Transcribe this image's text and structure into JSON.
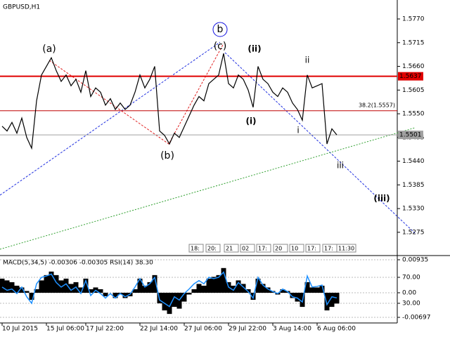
{
  "chart_data": [
    {
      "type": "line",
      "title": "GBPUSD,H1",
      "x": [
        "10 Jul 2015",
        null,
        null,
        null,
        null,
        null,
        null,
        null,
        null,
        "15 Jul 06:00",
        null,
        null,
        null,
        null,
        null,
        null,
        null,
        "17 Jul 22:00",
        null,
        null,
        null,
        null,
        null,
        null,
        null,
        null,
        null,
        null,
        "22 Jul 14:00",
        null,
        null,
        null,
        null,
        null,
        null,
        null,
        null,
        "27 Jul 06:00",
        null,
        null,
        null,
        null,
        null,
        null,
        null,
        null,
        "29 Jul 22:00",
        null,
        null,
        null,
        null,
        null,
        null,
        null,
        null,
        "3 Aug 14:00",
        null,
        null,
        null,
        null,
        null,
        null,
        null,
        null,
        "6 Aug 06:00",
        null,
        null,
        null,
        null
      ],
      "series": [
        {
          "color": "#000000",
          "values": [
            1.5521,
            1.551,
            1.553,
            1.5505,
            1.554,
            1.5495,
            1.547,
            1.558,
            1.564,
            1.566,
            1.568,
            1.565,
            1.5625,
            1.564,
            1.5615,
            1.563,
            1.56,
            1.565,
            1.559,
            1.561,
            1.56,
            1.557,
            1.5585,
            1.556,
            1.5575,
            1.556,
            1.557,
            1.56,
            1.564,
            1.561,
            1.563,
            1.566,
            1.551,
            1.55,
            1.548,
            1.5505,
            1.5495,
            1.552,
            1.5545,
            1.557,
            1.559,
            1.558,
            1.562,
            1.563,
            1.564,
            1.569,
            1.562,
            1.561,
            1.564,
            1.563,
            1.5605,
            1.5565,
            1.566,
            1.563,
            1.562,
            1.56,
            1.559,
            1.561,
            1.56,
            1.5575,
            1.556,
            1.5535,
            1.564,
            1.561,
            1.5615,
            1.562,
            1.548,
            1.5515,
            1.5501
          ]
        }
      ],
      "ylim": [
        1.5221,
        1.5814
      ],
      "yticks": [
        {
          "value": 1.577,
          "label": "1.5770"
        },
        1.5715,
        {
          "value": 1.566,
          "label": "1.5660"
        },
        1.5605,
        {
          "value": 1.555,
          "label": "1.5550"
        },
        1.5495,
        {
          "value": 1.544,
          "label": "1.5440"
        },
        1.5385,
        {
          "value": 1.533,
          "label": "1.5330"
        },
        1.5275
      ],
      "levels": [
        {
          "value": 1.5637,
          "label": "1.5637",
          "color": "#e00000"
        },
        {
          "value": 1.5557,
          "label": "38.2(1.5557)",
          "color": "#c00000"
        },
        {
          "value": 1.5501,
          "label": "1.5501",
          "color": "#a0a0a0"
        }
      ],
      "annotations": [
        {
          "text": "(a)",
          "color": "#e02020"
        },
        {
          "text": "(b)",
          "color": "#e02020"
        },
        {
          "text": "(c)",
          "color": "#e02020"
        },
        {
          "text": "b",
          "color": "#1010e0"
        },
        {
          "text": "(i)",
          "color": "#d00000"
        },
        {
          "text": "(ii)",
          "color": "#d00000"
        },
        {
          "text": "i",
          "color": "#606060"
        },
        {
          "text": "ii",
          "color": "#606060"
        },
        {
          "text": "iii",
          "color": "#606060"
        },
        {
          "text": "(iii)",
          "color": "#d00000"
        }
      ],
      "time_tags": [
        "18:",
        "20:",
        "21",
        "02",
        "17:",
        "20",
        "10",
        "17:",
        "17:",
        "11:30"
      ]
    },
    {
      "type": "bar",
      "title": "MACD(5,34,5) -0.00306 -0.00305 RSI(14) 38.30",
      "series": [
        {
          "color": "#000000",
          "values": [
            0.004,
            0.0035,
            0.003,
            0.002,
            0.0015,
            0.0005,
            -0.002,
            0.001,
            0.0035,
            0.005,
            0.006,
            0.005,
            0.0035,
            0.004,
            0.0025,
            0.003,
            0.0015,
            0.004,
            0.001,
            0.0015,
            0.001,
            -0.001,
            0.0,
            -0.0015,
            -0.0005,
            -0.0015,
            -0.001,
            0.001,
            0.004,
            0.002,
            0.003,
            0.005,
            -0.003,
            -0.005,
            -0.006,
            -0.004,
            -0.0045,
            -0.0025,
            -0.0005,
            0.001,
            0.0025,
            0.002,
            0.004,
            0.0045,
            0.005,
            0.007,
            0.003,
            0.002,
            0.0035,
            0.0025,
            0.001,
            -0.002,
            0.004,
            0.0025,
            0.0015,
            0.0005,
            -0.0005,
            0.001,
            0.0005,
            -0.0015,
            -0.0025,
            -0.004,
            0.003,
            0.0015,
            0.0015,
            0.002,
            -0.005,
            -0.004,
            -0.00306
          ]
        },
        {
          "color": "#1e90ff",
          "axis": "y2",
          "values": [
            55,
            50,
            52,
            45,
            55,
            40,
            30,
            60,
            70,
            72,
            75,
            62,
            55,
            60,
            50,
            55,
            45,
            65,
            42,
            50,
            45,
            38,
            45,
            38,
            45,
            40,
            44,
            55,
            68,
            55,
            60,
            70,
            35,
            30,
            25,
            40,
            35,
            45,
            52,
            60,
            65,
            60,
            70,
            68,
            70,
            78,
            55,
            50,
            62,
            55,
            48,
            38,
            70,
            58,
            52,
            48,
            45,
            52,
            48,
            40,
            38,
            32,
            72,
            55,
            56,
            58,
            28,
            40,
            38.3
          ]
        }
      ],
      "ylim": [
        -0.00816,
        0.01054
      ],
      "yticks": [
        0.00935,
        {
          "value": 0,
          "label": "0.00"
        },
        -0.00697
      ],
      "y2lim": [
        1.9,
        103.5
      ],
      "y2ticks": [
        {
          "value": 70,
          "label": "70.00"
        },
        {
          "value": 30,
          "label": "30.00"
        }
      ]
    }
  ]
}
